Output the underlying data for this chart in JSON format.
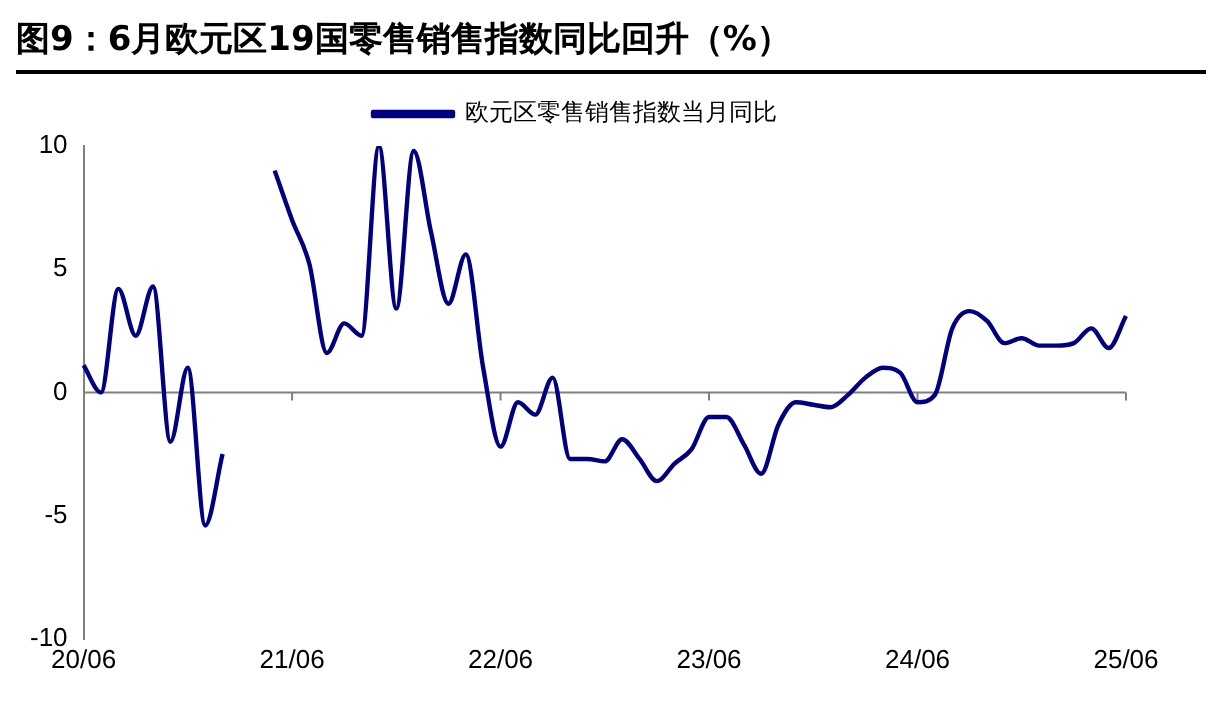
{
  "chart_data": {
    "type": "line",
    "title": "图9：6月欧元区19国零售销售指数同比回升（%）",
    "categories": [
      "20/06",
      null,
      null,
      null,
      null,
      null,
      null,
      null,
      null,
      null,
      null,
      null,
      "21/06",
      null,
      null,
      null,
      null,
      null,
      null,
      null,
      null,
      null,
      null,
      null,
      "22/06",
      null,
      null,
      null,
      null,
      null,
      null,
      null,
      null,
      null,
      null,
      null,
      "23/06",
      null,
      null,
      null,
      null,
      null,
      null,
      null,
      null,
      null,
      null,
      null,
      "24/06",
      null,
      null,
      null,
      null,
      null,
      null,
      null,
      null,
      null,
      null,
      null,
      "25/06"
    ],
    "series": [
      {
        "name": "欧元区零售销售指数当月同比",
        "color": "#000080",
        "values": [
          1.1,
          0,
          4.2,
          2.3,
          4.3,
          -2.0,
          1.0,
          -5.4,
          -2.5,
          null,
          null,
          9,
          7,
          5.2,
          1.6,
          2.8,
          2.3,
          10,
          3.4,
          9.8,
          6.5,
          3.6,
          5.6,
          1.0,
          -2.2,
          -0.4,
          -0.9,
          0.6,
          -2.7,
          -2.7,
          -2.8,
          -1.9,
          -2.7,
          -3.6,
          -2.9,
          -2.3,
          -1.0,
          -1.0,
          -2.1,
          -3.3,
          -1.3,
          -0.4,
          -0.5,
          -0.6,
          -0.1,
          0.6,
          1.0,
          0.8,
          -0.4,
          -0.1,
          2.6,
          3.3,
          2.9,
          2.0,
          2.2,
          1.9,
          1.9,
          2.0,
          2.6,
          1.8,
          3.1
        ]
      }
    ],
    "ylim": [
      -10,
      10
    ],
    "yticks": [
      -10,
      -5,
      0,
      5,
      10
    ],
    "grid": false,
    "legend": "top",
    "marker": "none",
    "line_style": "solid",
    "ref_lines": [
      {
        "axis": "y",
        "value": 0,
        "color": "#808080"
      }
    ]
  }
}
